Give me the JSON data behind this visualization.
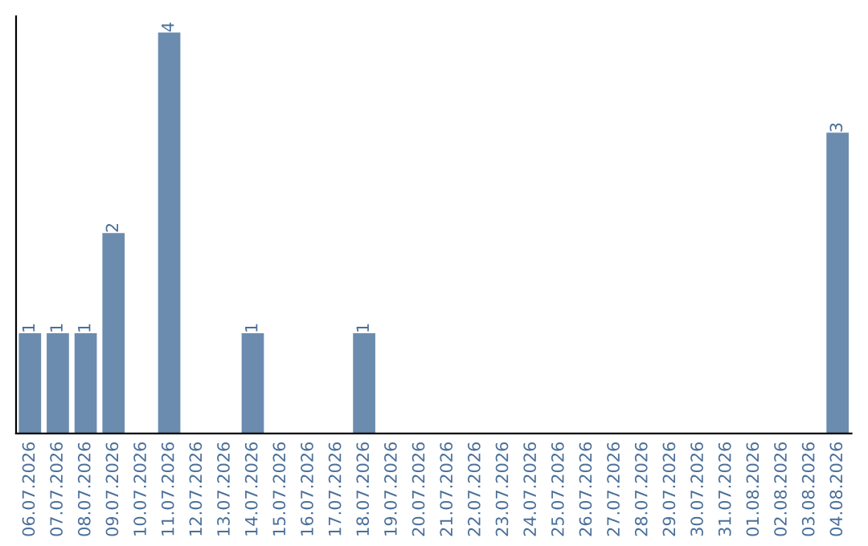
{
  "chart_data": {
    "type": "bar",
    "categories": [
      "06.07.2026",
      "07.07.2026",
      "08.07.2026",
      "09.07.2026",
      "10.07.2026",
      "11.07.2026",
      "12.07.2026",
      "13.07.2026",
      "14.07.2026",
      "15.07.2026",
      "16.07.2026",
      "17.07.2026",
      "18.07.2026",
      "19.07.2026",
      "20.07.2026",
      "21.07.2026",
      "22.07.2026",
      "23.07.2026",
      "24.07.2026",
      "25.07.2026",
      "26.07.2026",
      "27.07.2026",
      "28.07.2026",
      "29.07.2026",
      "30.07.2026",
      "31.07.2026",
      "01.08.2026",
      "02.08.2026",
      "03.08.2026",
      "04.08.2026"
    ],
    "values": [
      1,
      1,
      1,
      2,
      0,
      4,
      0,
      0,
      1,
      0,
      0,
      0,
      1,
      0,
      0,
      0,
      0,
      0,
      0,
      0,
      0,
      0,
      0,
      0,
      0,
      0,
      0,
      0,
      0,
      3
    ],
    "value_labels": [
      "1",
      "1",
      "1",
      "2",
      null,
      "4",
      null,
      null,
      "1",
      null,
      null,
      null,
      "1",
      null,
      null,
      null,
      null,
      null,
      null,
      null,
      null,
      null,
      null,
      null,
      null,
      null,
      null,
      null,
      null,
      "3"
    ],
    "color": "#6b8cae",
    "grid": false,
    "legend": false
  }
}
